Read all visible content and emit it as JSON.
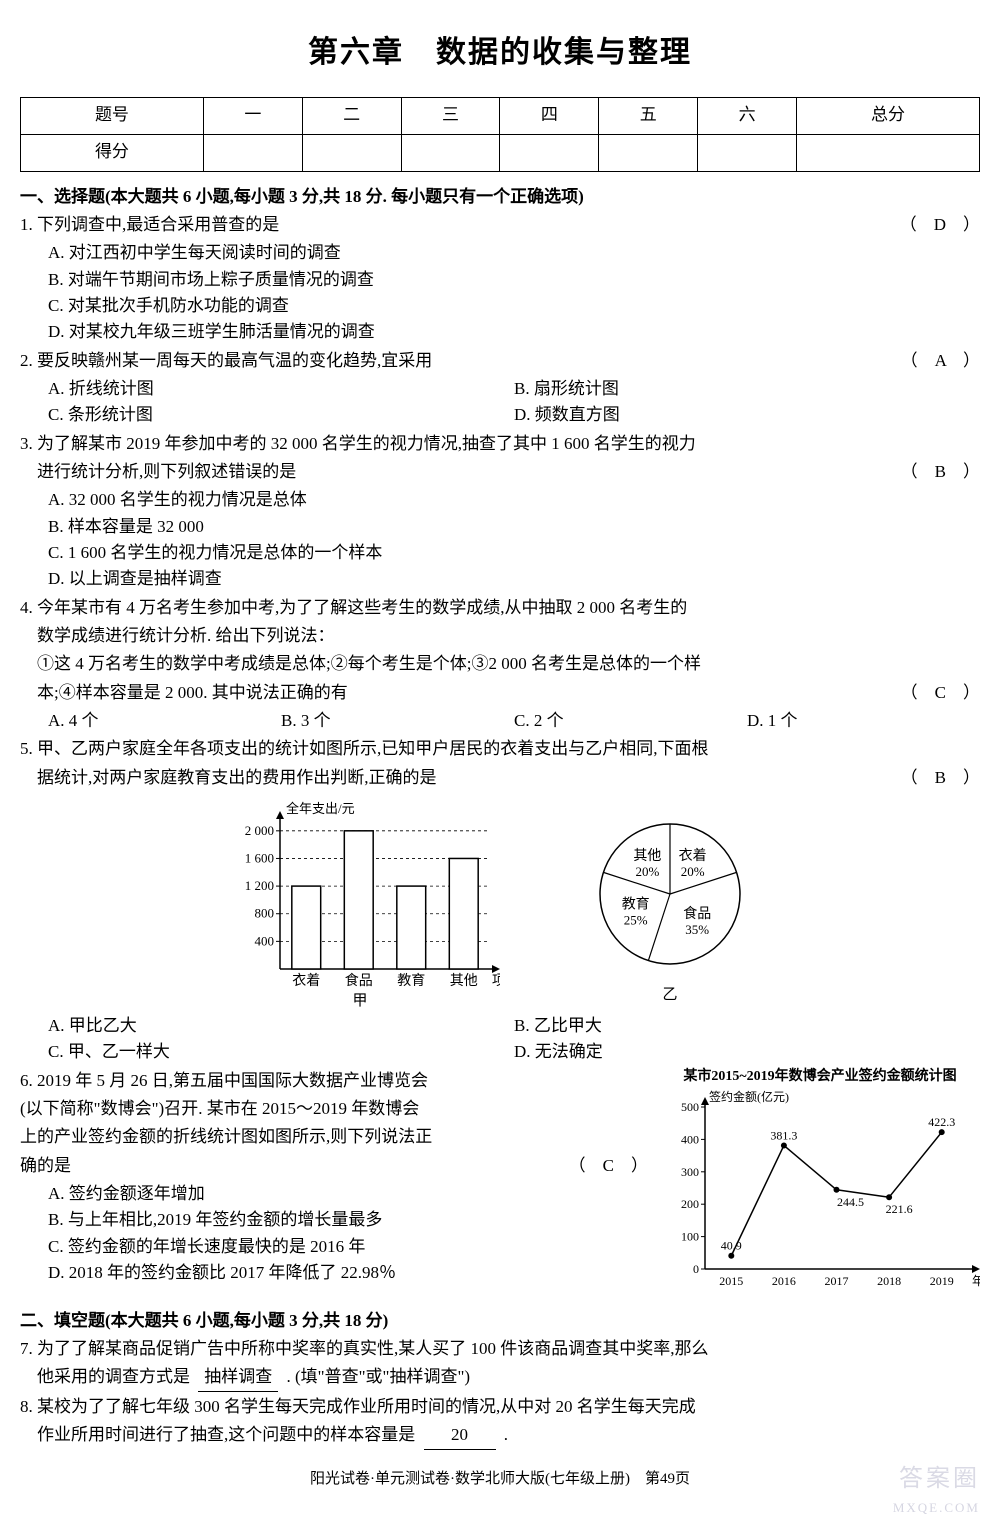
{
  "title": "第六章　数据的收集与整理",
  "score_table": {
    "headers": [
      "题号",
      "一",
      "二",
      "三",
      "四",
      "五",
      "六",
      "总分"
    ],
    "row2_label": "得分"
  },
  "section1": "一、选择题(本大题共 6 小题,每小题 3 分,共 18 分. 每小题只有一个正确选项)",
  "q1": {
    "stem": "1. 下列调查中,最适合采用普查的是",
    "ans": "（　D　）",
    "A": "A. 对江西初中学生每天阅读时间的调查",
    "B": "B. 对端午节期间市场上粽子质量情况的调查",
    "C": "C. 对某批次手机防水功能的调查",
    "D": "D. 对某校九年级三班学生肺活量情况的调查"
  },
  "q2": {
    "stem": "2. 要反映赣州某一周每天的最高气温的变化趋势,宜采用",
    "ans": "（　A　）",
    "A": "A. 折线统计图",
    "B": "B. 扇形统计图",
    "C": "C. 条形统计图",
    "D": "D. 频数直方图"
  },
  "q3": {
    "stem1": "3. 为了解某市 2019 年参加中考的 32 000 名学生的视力情况,抽查了其中 1 600 名学生的视力",
    "stem2": "　进行统计分析,则下列叙述错误的是",
    "ans": "（　B　）",
    "A": "A. 32 000 名学生的视力情况是总体",
    "B": "B. 样本容量是 32 000",
    "C": "C. 1 600 名学生的视力情况是总体的一个样本",
    "D": "D. 以上调查是抽样调查"
  },
  "q4": {
    "stem1": "4. 今年某市有 4 万名考生参加中考,为了了解这些考生的数学成绩,从中抽取 2 000 名考生的",
    "stem2": "　数学成绩进行统计分析. 给出下列说法：",
    "stem3": "　①这 4 万名考生的数学中考成绩是总体;②每个考生是个体;③2 000 名考生是总体的一个样",
    "stem4": "　本;④样本容量是 2 000. 其中说法正确的有",
    "ans": "（　C　）",
    "A": "A. 4 个",
    "B": "B. 3 个",
    "C": "C. 2 个",
    "D": "D. 1 个"
  },
  "q5": {
    "stem1": "5. 甲、乙两户家庭全年各项支出的统计如图所示,已知甲户居民的衣着支出与乙户相同,下面根",
    "stem2": "　据统计,对两户家庭教育支出的费用作出判断,正确的是",
    "ans": "（　B　）",
    "A": "A. 甲比乙大",
    "B": "B. 乙比甲大",
    "C": "C. 甲、乙一样大",
    "D": "D. 无法确定",
    "bar": {
      "ylabel": "全年支出/元",
      "yticks": [
        "400",
        "800",
        "1 200",
        "1 600",
        "2 000"
      ],
      "ytick_vals": [
        400,
        800,
        1200,
        1600,
        2000
      ],
      "ymax": 2200,
      "categories": [
        "衣着",
        "食品",
        "教育",
        "其他"
      ],
      "values": [
        1200,
        2000,
        1200,
        1600
      ],
      "xlabel": "项目",
      "caption": "甲",
      "bar_color": "#ffffff",
      "bar_border": "#000000",
      "grid_color": "#000000"
    },
    "pie": {
      "slices": [
        {
          "label": "衣着",
          "pct": 20,
          "start": 0
        },
        {
          "label": "食品",
          "pct": 35,
          "start": 72
        },
        {
          "label": "教育",
          "pct": 25,
          "start": 198
        },
        {
          "label": "其他",
          "pct": 20,
          "start": 288
        }
      ],
      "caption": "乙",
      "border": "#000000"
    }
  },
  "q6": {
    "stem1": "6. 2019 年 5 月 26 日,第五届中国国际大数据产业博览会",
    "stem2": "(以下简称\"数博会\")召开. 某市在 2015～2019 年数博会",
    "stem3": "上的产业签约金额的折线统计图如图所示,则下列说法正",
    "stem4": "确的是",
    "ans": "（　C　）",
    "A": "A. 签约金额逐年增加",
    "B": "B. 与上年相比,2019 年签约金额的增长量最多",
    "C": "C. 签约金额的年增长速度最快的是 2016 年",
    "D": "D. 2018 年的签约金额比 2017 年降低了 22.98％",
    "line": {
      "title": "某市2015~2019年数博会产业签约金额统计图",
      "ylabel": "签约金额(亿元)",
      "yticks": [
        0,
        100,
        200,
        300,
        400,
        500
      ],
      "years": [
        "2015",
        "2016",
        "2017",
        "2018",
        "2019"
      ],
      "xlabel": "年份",
      "values": [
        40.9,
        381.3,
        244.5,
        221.6,
        422.3
      ],
      "labels": [
        "40.9",
        "381.3",
        "244.5",
        "221.6",
        "422.3"
      ],
      "line_color": "#000000",
      "marker": "circle"
    }
  },
  "section2": "二、填空题(本大题共 6 小题,每小题 3 分,共 18 分)",
  "q7": {
    "stem1": "7. 为了了解某商品促销广告中所称中奖率的真实性,某人买了 100 件该商品调查其中奖率,那么",
    "stem2a": "　他采用的调查方式是",
    "blank": "抽样调查",
    "stem2b": ". (填\"普查\"或\"抽样调查\")"
  },
  "q8": {
    "stem1": "8. 某校为了了解七年级 300 名学生每天完成作业所用时间的情况,从中对 20 名学生每天完成",
    "stem2a": "　作业所用时间进行了抽查,这个问题中的样本容量是",
    "blank": "20",
    "stem2b": ". "
  },
  "footer": "阳光试卷·单元测试卷·数学北师大版(七年级上册)　第49页",
  "watermark1": "答案圈",
  "watermark2": "MXQE.COM"
}
